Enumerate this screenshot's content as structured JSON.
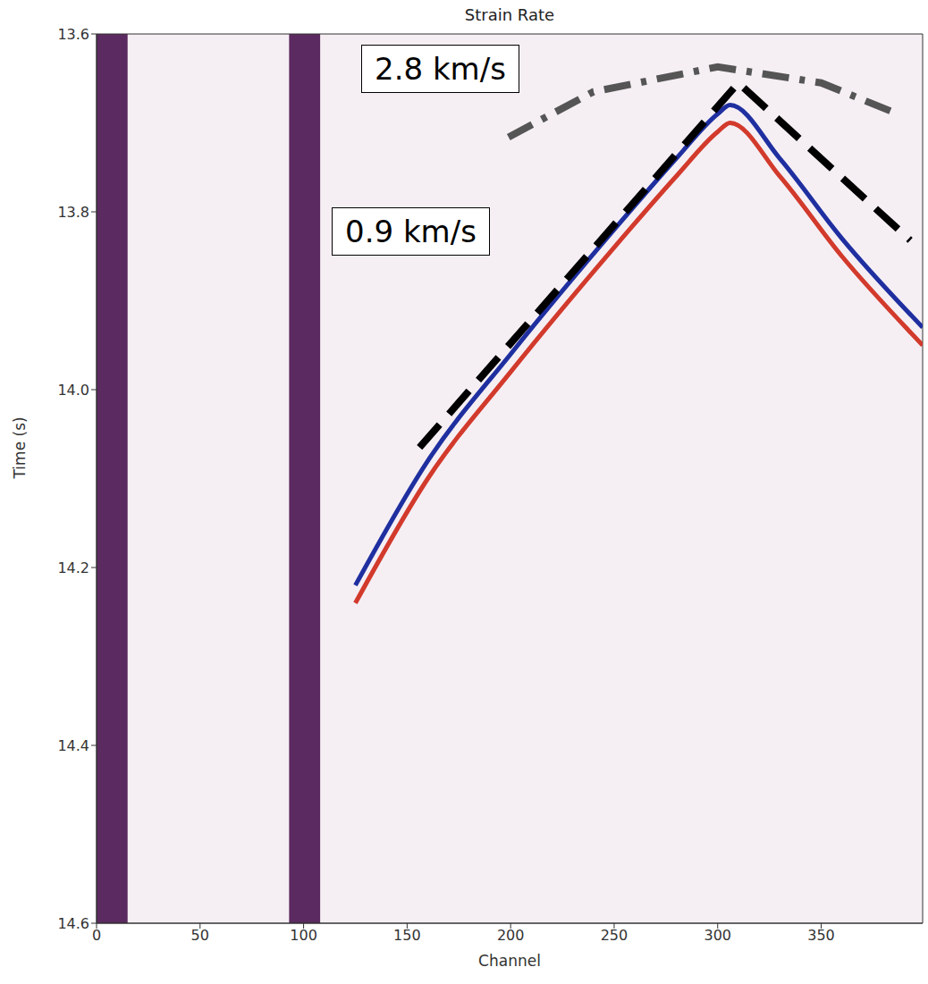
{
  "chart_data": {
    "type": "line",
    "title": "Strain Rate",
    "x_label": "Channel",
    "y_label": "Time (s)",
    "xlim": [
      0,
      399
    ],
    "xticks": [
      0,
      50,
      100,
      150,
      200,
      250,
      300,
      350
    ],
    "ylim": [
      13.6,
      14.6
    ],
    "yticks": [
      13.6,
      13.8,
      {
        "value": 14,
        "label": "14.0"
      },
      14.2,
      14.4,
      14.6
    ],
    "bands": [
      [
        0,
        15
      ],
      [
        93,
        108
      ]
    ],
    "series": [
      {
        "color": "#d23a2c",
        "line_style": "solid",
        "x": [
          125,
          160,
          200,
          250,
          280,
          300,
          306,
          330,
          360,
          399
        ],
        "values": [
          14.24,
          14.1,
          13.98,
          13.84,
          13.76,
          13.71,
          13.7,
          13.76,
          13.85,
          13.95
        ]
      },
      {
        "color": "#1f2fa0",
        "line_style": "solid",
        "x": [
          125,
          160,
          200,
          250,
          280,
          300,
          306,
          330,
          360,
          399
        ],
        "values": [
          14.22,
          14.08,
          13.96,
          13.82,
          13.74,
          13.69,
          13.68,
          13.74,
          13.83,
          13.93
        ]
      },
      {
        "color": "#000000",
        "line_style": "dashed",
        "x": [
          156,
          310,
          393
        ],
        "values": [
          14.065,
          13.655,
          13.832
        ]
      },
      {
        "color": "#555555",
        "line_style": "dashdot",
        "x": [
          199,
          240,
          300,
          350,
          387
        ],
        "values": [
          13.716,
          13.665,
          13.637,
          13.655,
          13.69
        ]
      }
    ],
    "annotations": [
      "2.8 km/s",
      "0.9 km/s"
    ]
  }
}
